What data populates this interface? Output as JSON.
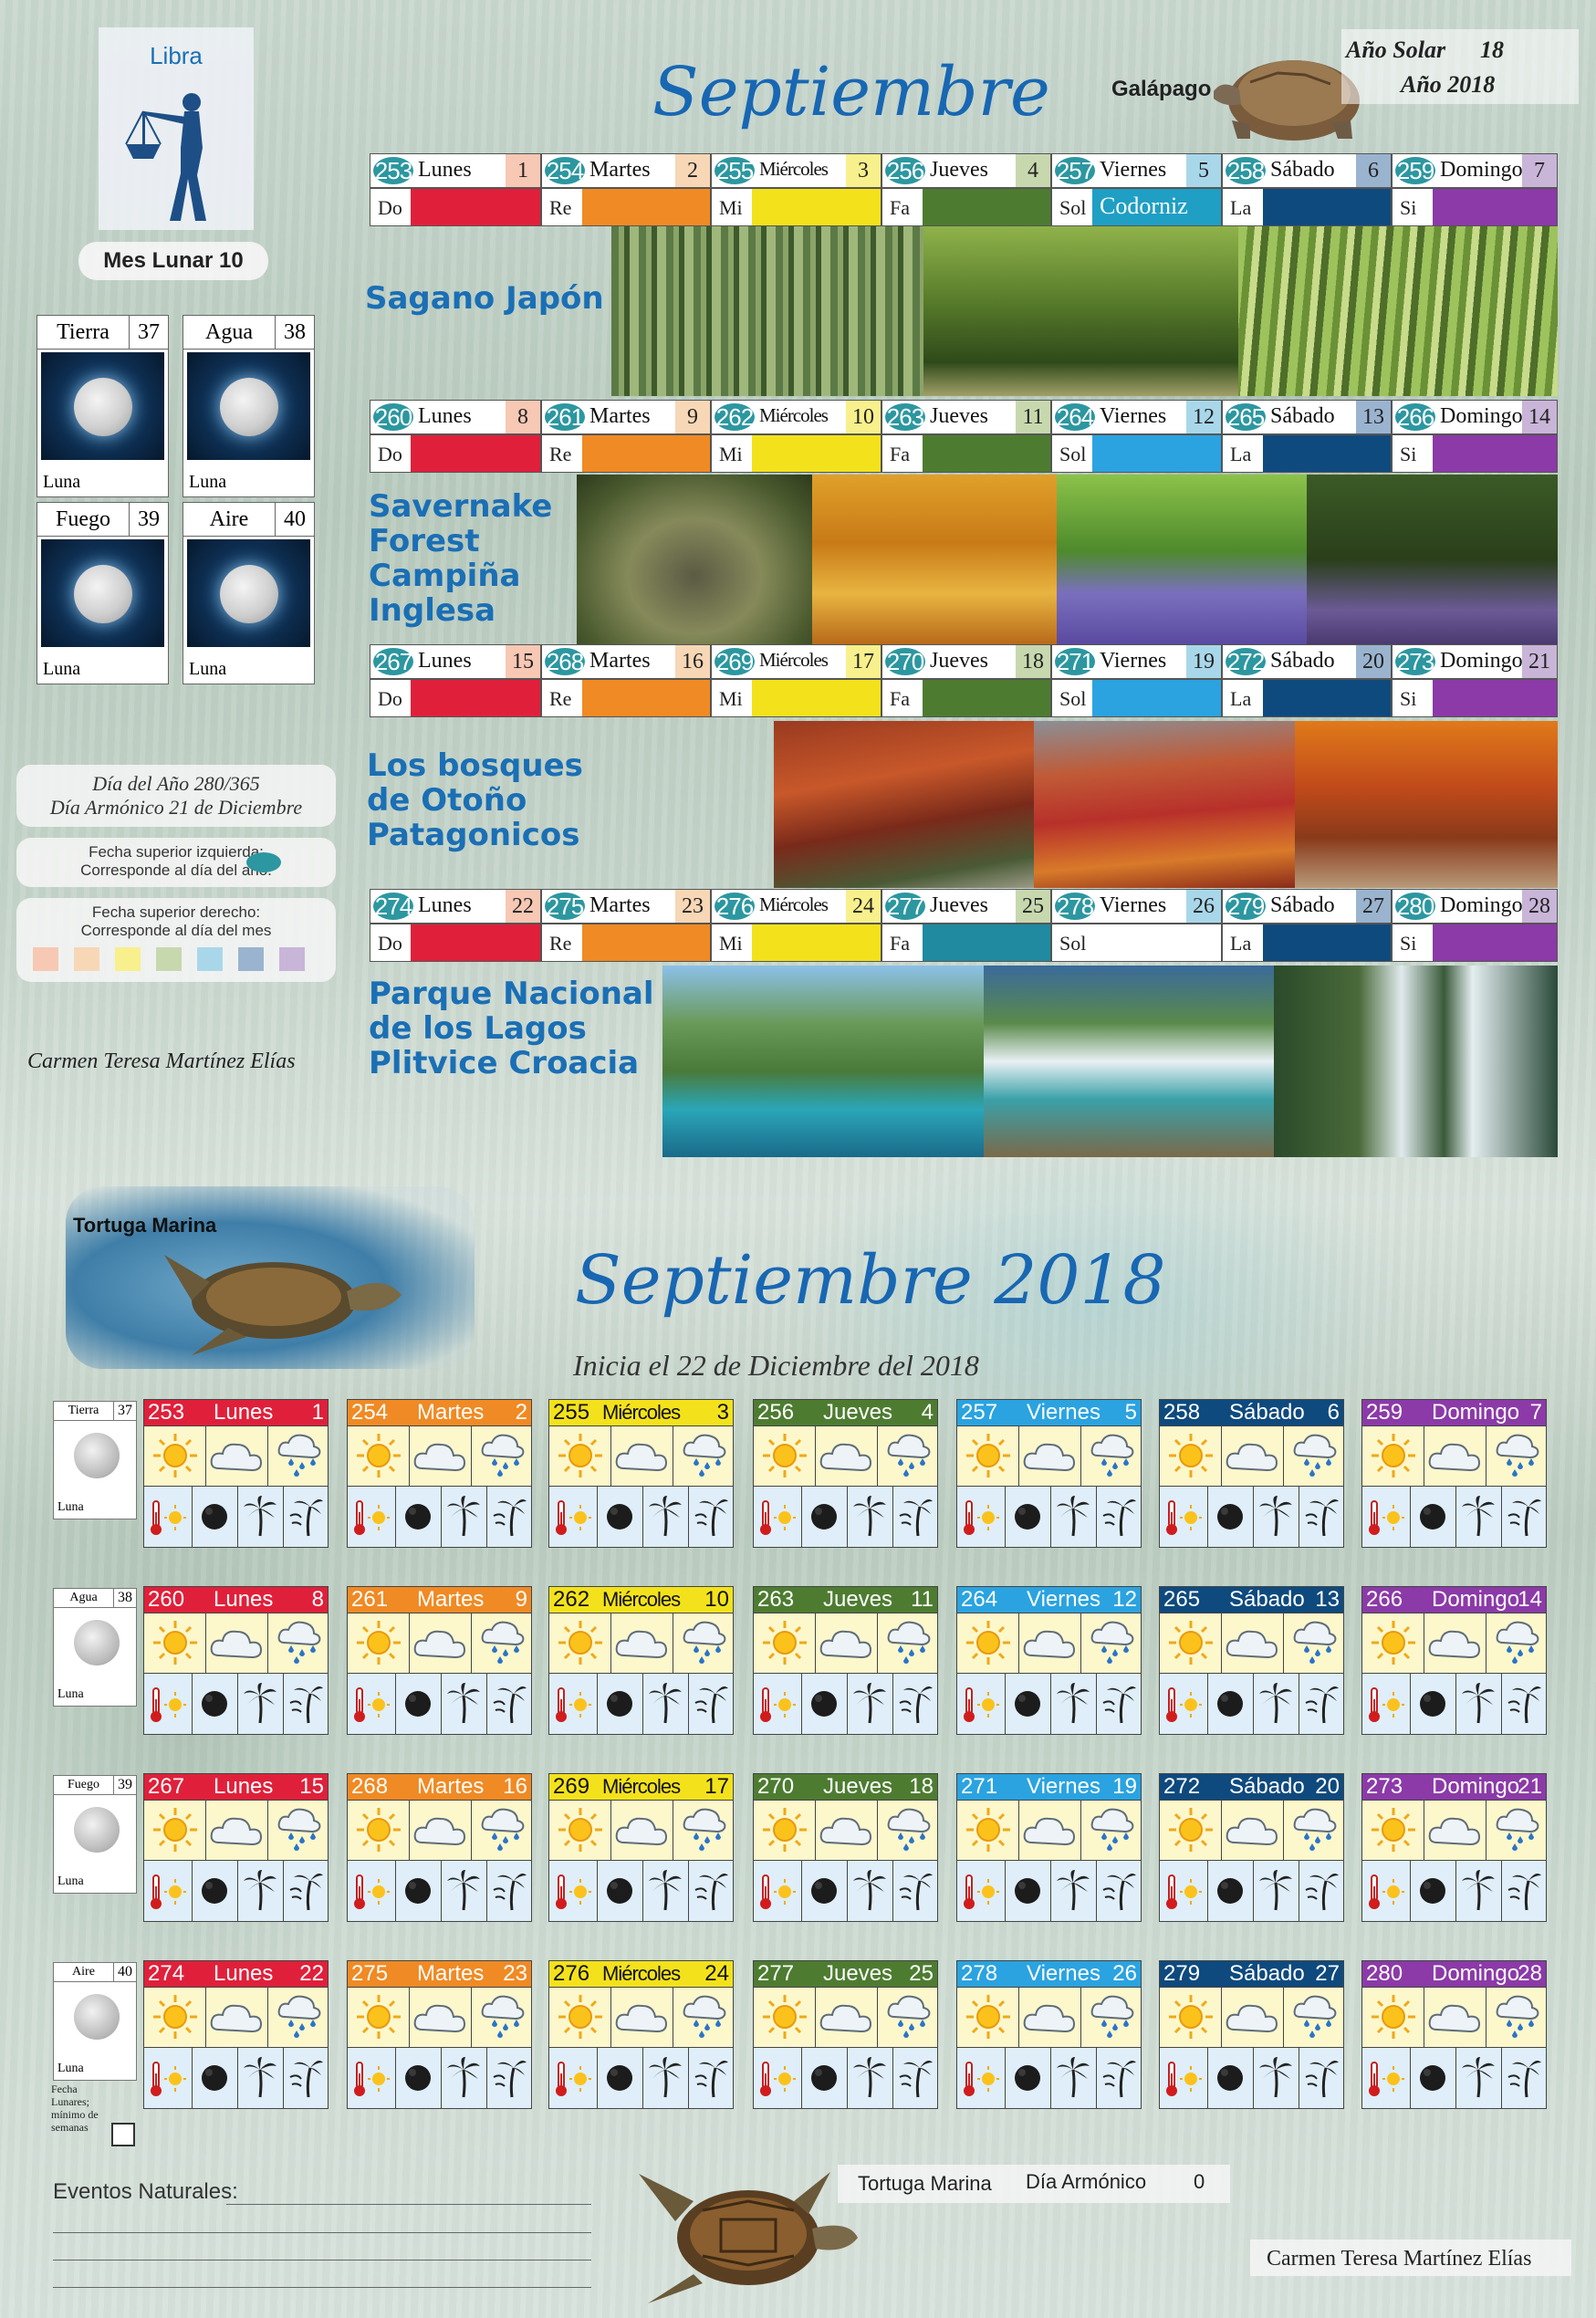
{
  "top": {
    "sign": "Libra",
    "month_title": "Septiembre",
    "animal": "Galápago",
    "solar_year_label": "Año Solar",
    "solar_year_value": "18",
    "year_label": "Año 2018",
    "lunar_month": "Mes Lunar 10",
    "elements": [
      {
        "name": "Tierra",
        "num": "37",
        "moon": "Luna"
      },
      {
        "name": "Agua",
        "num": "38",
        "moon": "Luna"
      },
      {
        "name": "Fuego",
        "num": "39",
        "moon": "Luna"
      },
      {
        "name": "Aire",
        "num": "40",
        "moon": "Luna"
      }
    ],
    "day_of_year": "Día del Año 280/365",
    "harmonic_day": "Día Armónico 21 de Diciembre",
    "legend_left_1": "Fecha superior izquierda:",
    "legend_left_2": "Corresponde al día del año.",
    "legend_right_1": "Fecha superior derecho:",
    "legend_right_2": "Corresponde al día del mes",
    "author": "Carmen Teresa Martínez Elías",
    "week_colors": [
      "#e0203a",
      "#f08a24",
      "#f3e21b",
      "#4d7c31",
      "#2aa3e0",
      "#0f4a7e",
      "#8b3aa8"
    ],
    "month_num_bg": [
      "#f7c8b4",
      "#f7d7b6",
      "#f8f08c",
      "#c8d8ae",
      "#a9d7ea",
      "#9ab4cf",
      "#c9b5d8"
    ],
    "notes": [
      "Do",
      "Re",
      "Mi",
      "Fa",
      "Sol",
      "La",
      "Si"
    ],
    "special_note": "Codorniz",
    "weeks": [
      {
        "days": [
          {
            "doy": "253",
            "name": "Lunes",
            "dom": "1"
          },
          {
            "doy": "254",
            "name": "Martes",
            "dom": "2"
          },
          {
            "doy": "255",
            "name": "Miércoles",
            "dom": "3"
          },
          {
            "doy": "256",
            "name": "Jueves",
            "dom": "4"
          },
          {
            "doy": "257",
            "name": "Viernes",
            "dom": "5"
          },
          {
            "doy": "258",
            "name": "Sábado",
            "dom": "6"
          },
          {
            "doy": "259",
            "name": "Domingo",
            "dom": "7"
          }
        ],
        "place": [
          "Sagano Japón"
        ]
      },
      {
        "days": [
          {
            "doy": "260",
            "name": "Lunes",
            "dom": "8"
          },
          {
            "doy": "261",
            "name": "Martes",
            "dom": "9"
          },
          {
            "doy": "262",
            "name": "Miércoles",
            "dom": "10"
          },
          {
            "doy": "263",
            "name": "Jueves",
            "dom": "11"
          },
          {
            "doy": "264",
            "name": "Viernes",
            "dom": "12"
          },
          {
            "doy": "265",
            "name": "Sábado",
            "dom": "13"
          },
          {
            "doy": "266",
            "name": "Domingo",
            "dom": "14"
          }
        ],
        "place": [
          "Savernake",
          "Forest",
          "Campiña",
          "Inglesa"
        ]
      },
      {
        "days": [
          {
            "doy": "267",
            "name": "Lunes",
            "dom": "15"
          },
          {
            "doy": "268",
            "name": "Martes",
            "dom": "16"
          },
          {
            "doy": "269",
            "name": "Miércoles",
            "dom": "17"
          },
          {
            "doy": "270",
            "name": "Jueves",
            "dom": "18"
          },
          {
            "doy": "271",
            "name": "Viernes",
            "dom": "19"
          },
          {
            "doy": "272",
            "name": "Sábado",
            "dom": "20"
          },
          {
            "doy": "273",
            "name": "Domingo",
            "dom": "21"
          }
        ],
        "place": [
          "Los bosques",
          "de Otoño",
          "Patagonicos"
        ]
      },
      {
        "days": [
          {
            "doy": "274",
            "name": "Lunes",
            "dom": "22"
          },
          {
            "doy": "275",
            "name": "Martes",
            "dom": "23"
          },
          {
            "doy": "276",
            "name": "Miércoles",
            "dom": "24"
          },
          {
            "doy": "277",
            "name": "Jueves",
            "dom": "25"
          },
          {
            "doy": "278",
            "name": "Viernes",
            "dom": "26"
          },
          {
            "doy": "279",
            "name": "Sábado",
            "dom": "27"
          },
          {
            "doy": "280",
            "name": "Domingo",
            "dom": "28"
          }
        ],
        "place": [
          "Parque Nacional",
          "de los Lagos",
          "Plitvice Croacia"
        ]
      }
    ]
  },
  "bottom": {
    "animal_top": "Tortuga Marina",
    "title": "Septiembre 2018",
    "subtitle": "Inicia el 22 de Diciembre del 2018",
    "lunar_note": "Fecha Lunares; mínimo de semanas",
    "events_label": "Eventos Naturales:",
    "animal_bottom": "Tortuga Marina",
    "harmonic_label": "Día Armónico",
    "harmonic_value": "0",
    "author": "Carmen Teresa Martínez Elías",
    "icons": [
      "sun-icon",
      "cloud-icon",
      "rain-icon",
      "thermometer-sun-icon",
      "moon-icon",
      "palm-icon",
      "wind-icon"
    ]
  }
}
